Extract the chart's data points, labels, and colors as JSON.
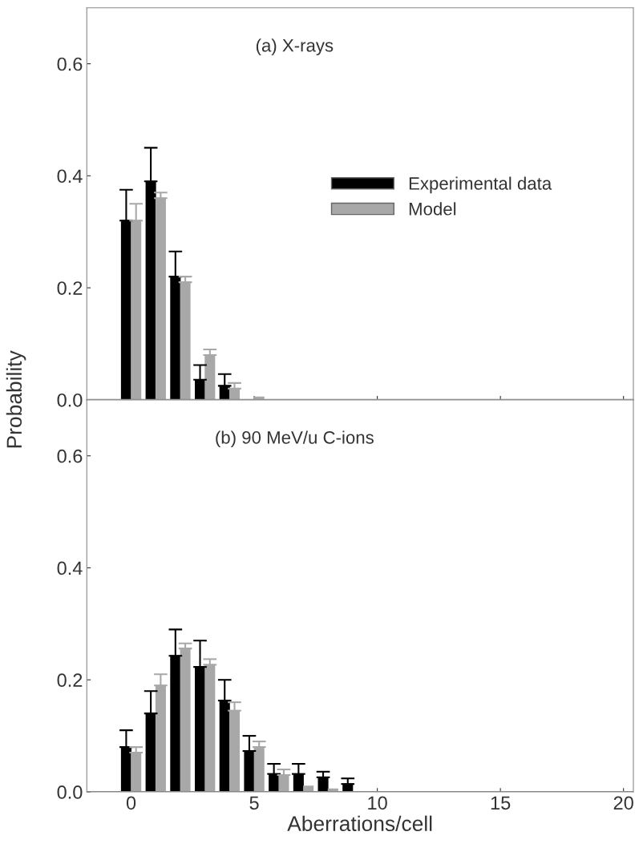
{
  "chart_data": [
    {
      "type": "bar",
      "title": "(a) X-rays",
      "ylabel": "Probability",
      "x": [
        0,
        1,
        2,
        3,
        4,
        5
      ],
      "xlim": [
        -1.8,
        20.4
      ],
      "xticks": [
        0,
        5,
        10,
        15,
        20
      ],
      "ylim": [
        0,
        0.7
      ],
      "yticks": [
        {
          "value": 0,
          "label": "0.0"
        },
        0.2,
        0.4,
        0.6
      ],
      "tick_labels": "y",
      "legend": "center right",
      "grid": false,
      "series": [
        {
          "name": "Experimental data",
          "color": "#000000",
          "values": [
            0.32,
            0.39,
            0.22,
            0.036,
            0.025,
            0
          ],
          "errors": [
            0.055,
            0.06,
            0.045,
            0.026,
            0.021,
            null
          ]
        },
        {
          "name": "Model",
          "color": "#a8a8a8",
          "values": [
            0.32,
            0.36,
            0.21,
            0.08,
            0.02,
            0.005
          ],
          "errors": [
            0.03,
            0.01,
            0.01,
            0.01,
            0.01,
            null
          ]
        }
      ]
    },
    {
      "type": "bar",
      "title": "(b) 90 MeV/u C-ions",
      "xlabel": "Aberrations/cell",
      "x": [
        0,
        1,
        2,
        3,
        4,
        5,
        6,
        7,
        8,
        9
      ],
      "xlim": [
        -1.8,
        20.4
      ],
      "xticks": [
        0,
        5,
        10,
        15,
        20
      ],
      "ylim": [
        0,
        0.7
      ],
      "yticks": [
        {
          "value": 0,
          "label": "0.0"
        },
        0.2,
        0.4,
        0.6
      ],
      "grid": false,
      "series": [
        {
          "color": "#000000",
          "values": [
            0.08,
            0.14,
            0.243,
            0.223,
            0.163,
            0.073,
            0.032,
            0.032,
            0.026,
            0.014
          ],
          "errors": [
            0.03,
            0.04,
            0.047,
            0.047,
            0.037,
            0.027,
            0.018,
            0.018,
            0.01,
            0.01
          ]
        },
        {
          "color": "#a8a8a8",
          "values": [
            0.07,
            0.19,
            0.256,
            0.227,
            0.145,
            0.08,
            0.03,
            0.01,
            0.005,
            0
          ],
          "errors": [
            0.01,
            0.02,
            0.009,
            0.01,
            0.015,
            0.01,
            0.01,
            null,
            null,
            null
          ]
        }
      ]
    }
  ]
}
